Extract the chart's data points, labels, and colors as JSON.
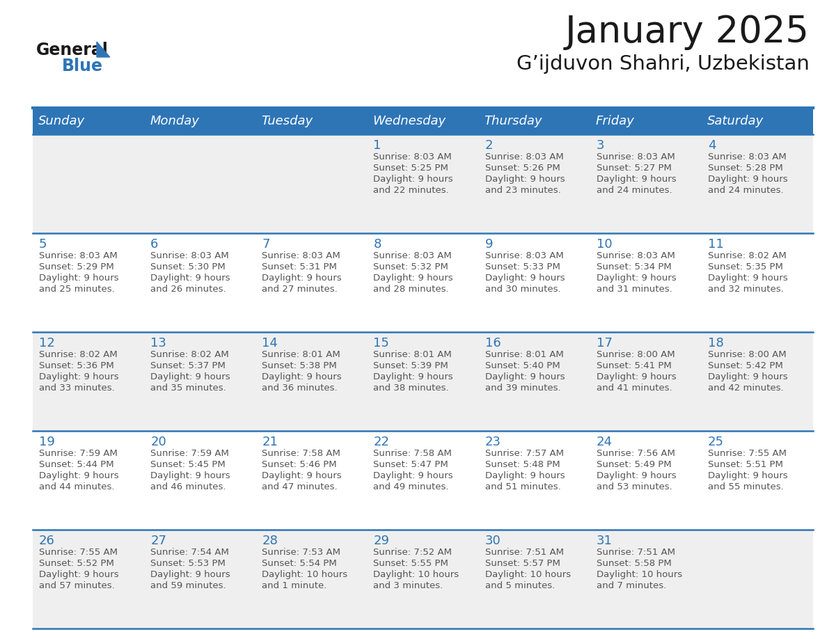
{
  "title": "January 2025",
  "subtitle": "G’ijduvon Shahri, Uzbekistan",
  "days_of_week": [
    "Sunday",
    "Monday",
    "Tuesday",
    "Wednesday",
    "Thursday",
    "Friday",
    "Saturday"
  ],
  "header_bg": "#2E75B6",
  "header_text": "#FFFFFF",
  "row_bg_light": "#EFEFEF",
  "row_bg_white": "#FFFFFF",
  "cell_border_color": "#2E75B6",
  "day_number_color": "#2E75B6",
  "cell_text_color": "#555555",
  "calendar": [
    [
      {
        "day": "",
        "sunrise": "",
        "sunset": "",
        "daylight_line1": "",
        "daylight_line2": ""
      },
      {
        "day": "",
        "sunrise": "",
        "sunset": "",
        "daylight_line1": "",
        "daylight_line2": ""
      },
      {
        "day": "",
        "sunrise": "",
        "sunset": "",
        "daylight_line1": "",
        "daylight_line2": ""
      },
      {
        "day": "1",
        "sunrise": "Sunrise: 8:03 AM",
        "sunset": "Sunset: 5:25 PM",
        "daylight_line1": "Daylight: 9 hours",
        "daylight_line2": "and 22 minutes."
      },
      {
        "day": "2",
        "sunrise": "Sunrise: 8:03 AM",
        "sunset": "Sunset: 5:26 PM",
        "daylight_line1": "Daylight: 9 hours",
        "daylight_line2": "and 23 minutes."
      },
      {
        "day": "3",
        "sunrise": "Sunrise: 8:03 AM",
        "sunset": "Sunset: 5:27 PM",
        "daylight_line1": "Daylight: 9 hours",
        "daylight_line2": "and 24 minutes."
      },
      {
        "day": "4",
        "sunrise": "Sunrise: 8:03 AM",
        "sunset": "Sunset: 5:28 PM",
        "daylight_line1": "Daylight: 9 hours",
        "daylight_line2": "and 24 minutes."
      }
    ],
    [
      {
        "day": "5",
        "sunrise": "Sunrise: 8:03 AM",
        "sunset": "Sunset: 5:29 PM",
        "daylight_line1": "Daylight: 9 hours",
        "daylight_line2": "and 25 minutes."
      },
      {
        "day": "6",
        "sunrise": "Sunrise: 8:03 AM",
        "sunset": "Sunset: 5:30 PM",
        "daylight_line1": "Daylight: 9 hours",
        "daylight_line2": "and 26 minutes."
      },
      {
        "day": "7",
        "sunrise": "Sunrise: 8:03 AM",
        "sunset": "Sunset: 5:31 PM",
        "daylight_line1": "Daylight: 9 hours",
        "daylight_line2": "and 27 minutes."
      },
      {
        "day": "8",
        "sunrise": "Sunrise: 8:03 AM",
        "sunset": "Sunset: 5:32 PM",
        "daylight_line1": "Daylight: 9 hours",
        "daylight_line2": "and 28 minutes."
      },
      {
        "day": "9",
        "sunrise": "Sunrise: 8:03 AM",
        "sunset": "Sunset: 5:33 PM",
        "daylight_line1": "Daylight: 9 hours",
        "daylight_line2": "and 30 minutes."
      },
      {
        "day": "10",
        "sunrise": "Sunrise: 8:03 AM",
        "sunset": "Sunset: 5:34 PM",
        "daylight_line1": "Daylight: 9 hours",
        "daylight_line2": "and 31 minutes."
      },
      {
        "day": "11",
        "sunrise": "Sunrise: 8:02 AM",
        "sunset": "Sunset: 5:35 PM",
        "daylight_line1": "Daylight: 9 hours",
        "daylight_line2": "and 32 minutes."
      }
    ],
    [
      {
        "day": "12",
        "sunrise": "Sunrise: 8:02 AM",
        "sunset": "Sunset: 5:36 PM",
        "daylight_line1": "Daylight: 9 hours",
        "daylight_line2": "and 33 minutes."
      },
      {
        "day": "13",
        "sunrise": "Sunrise: 8:02 AM",
        "sunset": "Sunset: 5:37 PM",
        "daylight_line1": "Daylight: 9 hours",
        "daylight_line2": "and 35 minutes."
      },
      {
        "day": "14",
        "sunrise": "Sunrise: 8:01 AM",
        "sunset": "Sunset: 5:38 PM",
        "daylight_line1": "Daylight: 9 hours",
        "daylight_line2": "and 36 minutes."
      },
      {
        "day": "15",
        "sunrise": "Sunrise: 8:01 AM",
        "sunset": "Sunset: 5:39 PM",
        "daylight_line1": "Daylight: 9 hours",
        "daylight_line2": "and 38 minutes."
      },
      {
        "day": "16",
        "sunrise": "Sunrise: 8:01 AM",
        "sunset": "Sunset: 5:40 PM",
        "daylight_line1": "Daylight: 9 hours",
        "daylight_line2": "and 39 minutes."
      },
      {
        "day": "17",
        "sunrise": "Sunrise: 8:00 AM",
        "sunset": "Sunset: 5:41 PM",
        "daylight_line1": "Daylight: 9 hours",
        "daylight_line2": "and 41 minutes."
      },
      {
        "day": "18",
        "sunrise": "Sunrise: 8:00 AM",
        "sunset": "Sunset: 5:42 PM",
        "daylight_line1": "Daylight: 9 hours",
        "daylight_line2": "and 42 minutes."
      }
    ],
    [
      {
        "day": "19",
        "sunrise": "Sunrise: 7:59 AM",
        "sunset": "Sunset: 5:44 PM",
        "daylight_line1": "Daylight: 9 hours",
        "daylight_line2": "and 44 minutes."
      },
      {
        "day": "20",
        "sunrise": "Sunrise: 7:59 AM",
        "sunset": "Sunset: 5:45 PM",
        "daylight_line1": "Daylight: 9 hours",
        "daylight_line2": "and 46 minutes."
      },
      {
        "day": "21",
        "sunrise": "Sunrise: 7:58 AM",
        "sunset": "Sunset: 5:46 PM",
        "daylight_line1": "Daylight: 9 hours",
        "daylight_line2": "and 47 minutes."
      },
      {
        "day": "22",
        "sunrise": "Sunrise: 7:58 AM",
        "sunset": "Sunset: 5:47 PM",
        "daylight_line1": "Daylight: 9 hours",
        "daylight_line2": "and 49 minutes."
      },
      {
        "day": "23",
        "sunrise": "Sunrise: 7:57 AM",
        "sunset": "Sunset: 5:48 PM",
        "daylight_line1": "Daylight: 9 hours",
        "daylight_line2": "and 51 minutes."
      },
      {
        "day": "24",
        "sunrise": "Sunrise: 7:56 AM",
        "sunset": "Sunset: 5:49 PM",
        "daylight_line1": "Daylight: 9 hours",
        "daylight_line2": "and 53 minutes."
      },
      {
        "day": "25",
        "sunrise": "Sunrise: 7:55 AM",
        "sunset": "Sunset: 5:51 PM",
        "daylight_line1": "Daylight: 9 hours",
        "daylight_line2": "and 55 minutes."
      }
    ],
    [
      {
        "day": "26",
        "sunrise": "Sunrise: 7:55 AM",
        "sunset": "Sunset: 5:52 PM",
        "daylight_line1": "Daylight: 9 hours",
        "daylight_line2": "and 57 minutes."
      },
      {
        "day": "27",
        "sunrise": "Sunrise: 7:54 AM",
        "sunset": "Sunset: 5:53 PM",
        "daylight_line1": "Daylight: 9 hours",
        "daylight_line2": "and 59 minutes."
      },
      {
        "day": "28",
        "sunrise": "Sunrise: 7:53 AM",
        "sunset": "Sunset: 5:54 PM",
        "daylight_line1": "Daylight: 10 hours",
        "daylight_line2": "and 1 minute."
      },
      {
        "day": "29",
        "sunrise": "Sunrise: 7:52 AM",
        "sunset": "Sunset: 5:55 PM",
        "daylight_line1": "Daylight: 10 hours",
        "daylight_line2": "and 3 minutes."
      },
      {
        "day": "30",
        "sunrise": "Sunrise: 7:51 AM",
        "sunset": "Sunset: 5:57 PM",
        "daylight_line1": "Daylight: 10 hours",
        "daylight_line2": "and 5 minutes."
      },
      {
        "day": "31",
        "sunrise": "Sunrise: 7:51 AM",
        "sunset": "Sunset: 5:58 PM",
        "daylight_line1": "Daylight: 10 hours",
        "daylight_line2": "and 7 minutes."
      },
      {
        "day": "",
        "sunrise": "",
        "sunset": "",
        "daylight_line1": "",
        "daylight_line2": ""
      }
    ]
  ]
}
